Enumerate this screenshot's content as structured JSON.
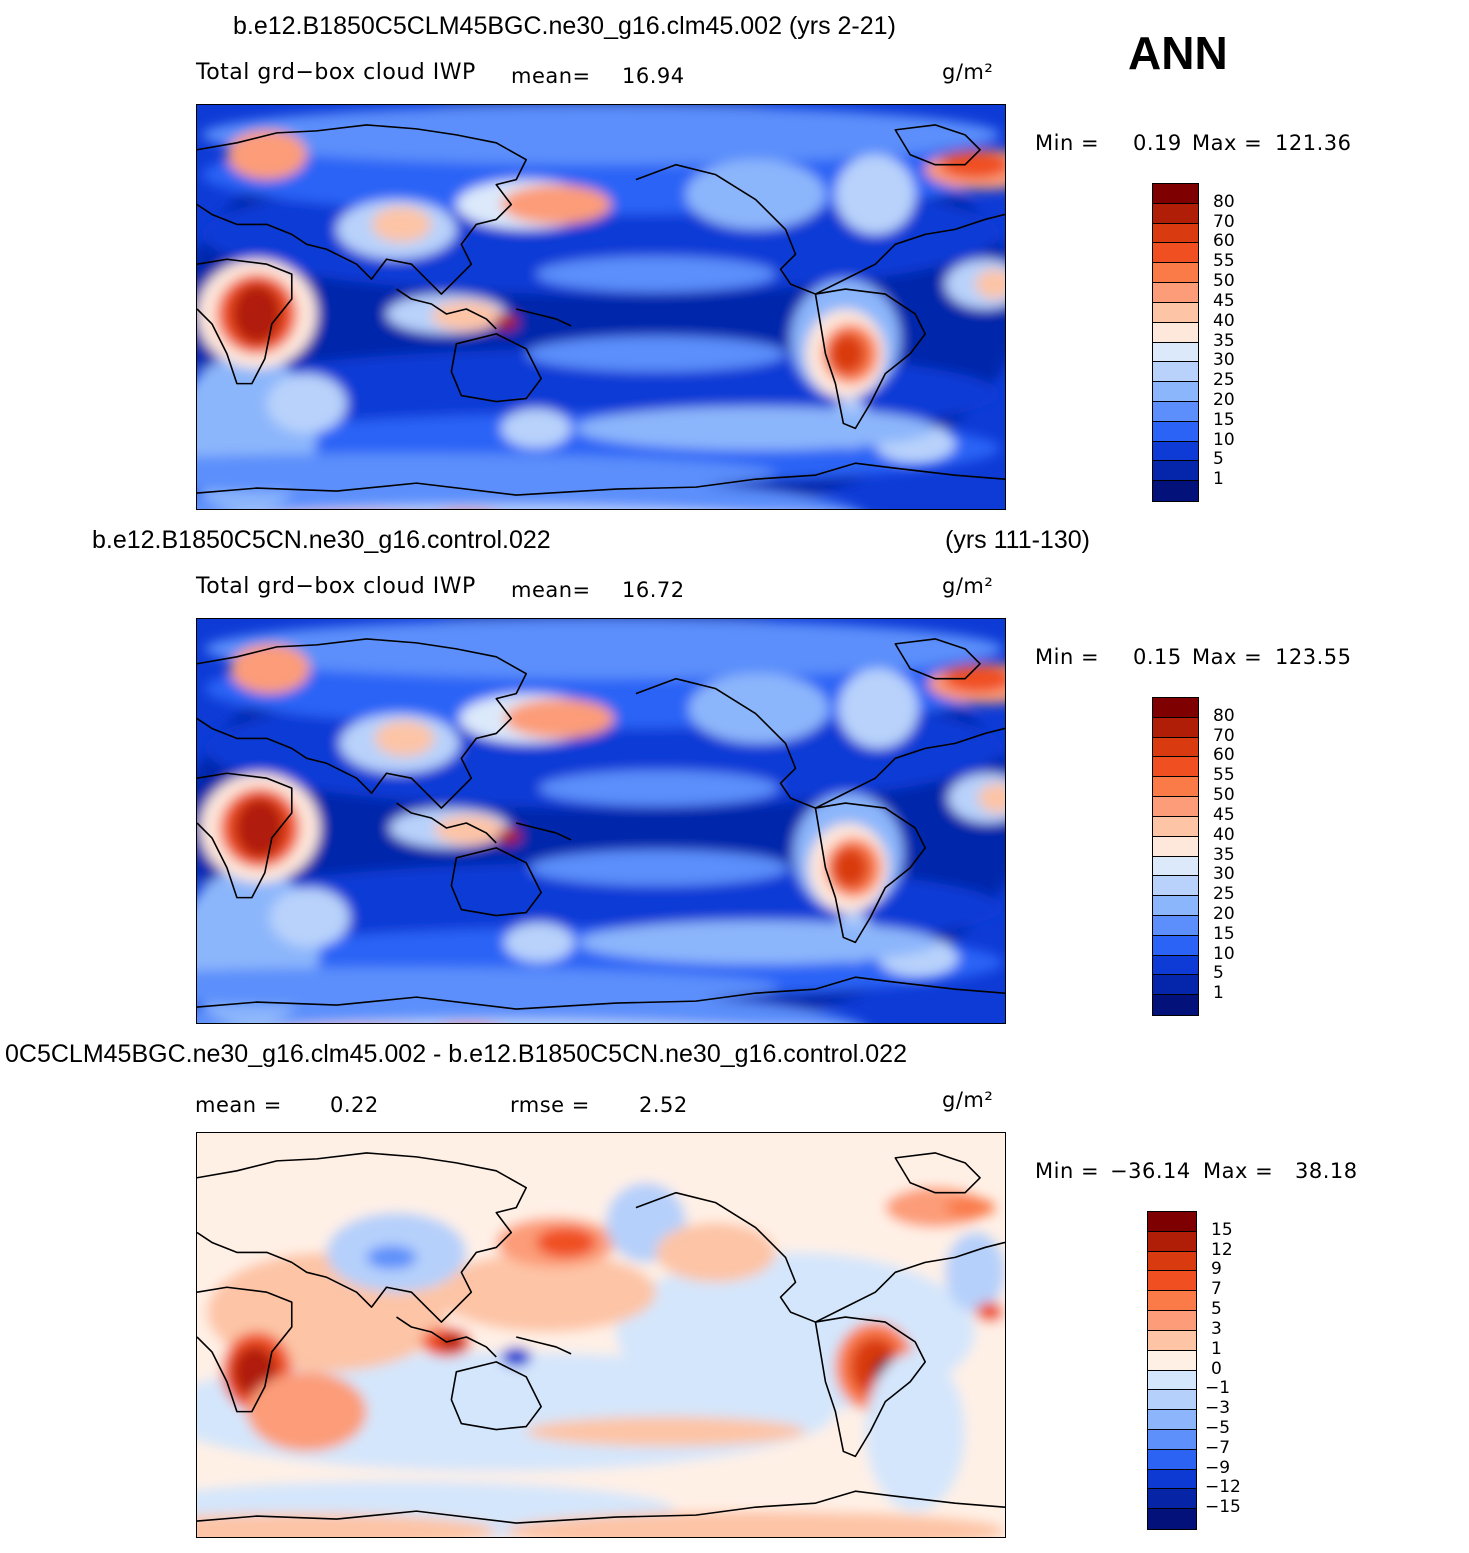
{
  "season": "ANN",
  "units": "g/m²",
  "panels": [
    {
      "id": "case",
      "title": "b.e12.B1850C5CLM45BGC.ne30_g16.clm45.002 (yrs 2-21)",
      "title_right": "",
      "variable": "Total grd−box cloud IWP",
      "mean_label": "mean=",
      "mean": "16.94",
      "min_label": "Min =",
      "min": "0.19",
      "max_label": "Max =",
      "max": "121.36",
      "colorbar": {
        "levels": [
          "80",
          "70",
          "60",
          "55",
          "50",
          "45",
          "40",
          "35",
          "30",
          "25",
          "20",
          "15",
          "10",
          "5",
          "1"
        ],
        "colors": [
          "#7f0000",
          "#b01e08",
          "#d93a10",
          "#f04f22",
          "#fa7a48",
          "#fc9c78",
          "#fdc4a6",
          "#fee8dc",
          "#dce9fb",
          "#b8d2fb",
          "#8cb6fb",
          "#5c8ffb",
          "#2a63f6",
          "#0e3bd6",
          "#0526ab",
          "#03127a"
        ]
      },
      "field": "abs"
    },
    {
      "id": "control",
      "title": "b.e12.B1850C5CN.ne30_g16.control.022",
      "title_right": "(yrs 111-130)",
      "variable": "Total grd−box cloud IWP",
      "mean_label": "mean=",
      "mean": "16.72",
      "min_label": "Min =",
      "min": "0.15",
      "max_label": "Max =",
      "max": "123.55",
      "colorbar": {
        "levels": [
          "80",
          "70",
          "60",
          "55",
          "50",
          "45",
          "40",
          "35",
          "30",
          "25",
          "20",
          "15",
          "10",
          "5",
          "1"
        ],
        "colors": [
          "#7f0000",
          "#b01e08",
          "#d93a10",
          "#f04f22",
          "#fa7a48",
          "#fc9c78",
          "#fdc4a6",
          "#fee8dc",
          "#dce9fb",
          "#b8d2fb",
          "#8cb6fb",
          "#5c8ffb",
          "#2a63f6",
          "#0e3bd6",
          "#0526ab",
          "#03127a"
        ]
      },
      "field": "abs"
    },
    {
      "id": "diff",
      "title": "0C5CLM45BGC.ne30_g16.clm45.002 - b.e12.B1850C5CN.ne30_g16.control.022",
      "title_right": "",
      "mean_label": "mean =",
      "mean": "0.22",
      "rmse_label": "rmse =",
      "rmse": "2.52",
      "min_label": "Min =",
      "min": "−36.14",
      "max_label": "Max =",
      "max": "38.18",
      "colorbar": {
        "levels": [
          "15",
          "12",
          "9",
          "7",
          "5",
          "3",
          "1",
          "0",
          "−1",
          "−3",
          "−5",
          "−7",
          "−9",
          "−12",
          "−15"
        ],
        "colors": [
          "#7f0000",
          "#b01e08",
          "#d93a10",
          "#f04f22",
          "#fa7a48",
          "#fc9c78",
          "#fdc4a6",
          "#fff0e6",
          "#d4e6fc",
          "#b5d0fb",
          "#8db5fb",
          "#5d90fa",
          "#2d63f3",
          "#0e3ad4",
          "#0524a6",
          "#03117a"
        ]
      },
      "field": "diff"
    }
  ]
}
